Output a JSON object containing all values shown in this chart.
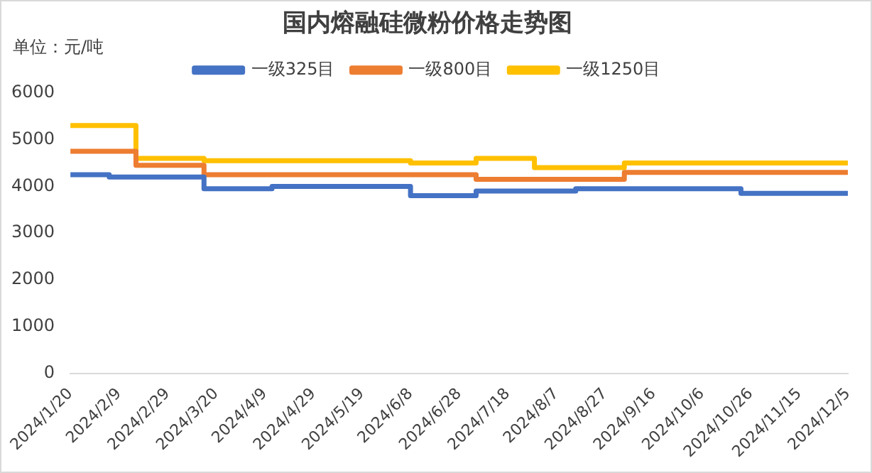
{
  "chart_data": {
    "type": "step",
    "title": "国内熔融硅微粉价格走势图",
    "annotations": [
      "单位：元/吨"
    ],
    "series": [
      {
        "name": "一级325目",
        "color": "#4472c4",
        "x": [
          "2024-01-20",
          "2024-02-05",
          "2024-03-15",
          "2024-04-12",
          "2024-06-08",
          "2024-07-05",
          "2024-08-15",
          "2024-10-22",
          "2024-12-05"
        ],
        "values": [
          4250,
          4200,
          3950,
          4000,
          3800,
          3900,
          3950,
          3850,
          3850
        ]
      },
      {
        "name": "一级800目",
        "color": "#ed7d31",
        "x": [
          "2024-01-20",
          "2024-02-16",
          "2024-03-15",
          "2024-07-05",
          "2024-09-04",
          "2024-12-05"
        ],
        "values": [
          4750,
          4450,
          4250,
          4150,
          4300,
          4300
        ]
      },
      {
        "name": "一级1250目",
        "color": "#ffc000",
        "x": [
          "2024-01-20",
          "2024-02-16",
          "2024-03-15",
          "2024-06-08",
          "2024-07-05",
          "2024-07-29",
          "2024-09-04",
          "2024-12-05"
        ],
        "values": [
          5300,
          4600,
          4550,
          4500,
          4600,
          4400,
          4500,
          4500
        ]
      }
    ],
    "xlim": [
      "2024-01-20",
      "2024-12-05"
    ],
    "xticks": [
      {
        "value": "2024-01-20",
        "label": "2024/1/20"
      },
      {
        "value": "2024-02-09",
        "label": "2024/2/9"
      },
      {
        "value": "2024-02-29",
        "label": "2024/2/29"
      },
      {
        "value": "2024-03-20",
        "label": "2024/3/20"
      },
      {
        "value": "2024-04-09",
        "label": "2024/4/9"
      },
      {
        "value": "2024-04-29",
        "label": "2024/4/29"
      },
      {
        "value": "2024-05-19",
        "label": "2024/5/19"
      },
      {
        "value": "2024-06-08",
        "label": "2024/6/8"
      },
      {
        "value": "2024-06-28",
        "label": "2024/6/28"
      },
      {
        "value": "2024-07-18",
        "label": "2024/7/18"
      },
      {
        "value": "2024-08-07",
        "label": "2024/8/7"
      },
      {
        "value": "2024-08-27",
        "label": "2024/8/27"
      },
      {
        "value": "2024-09-16",
        "label": "2024/9/16"
      },
      {
        "value": "2024-10-06",
        "label": "2024/10/6"
      },
      {
        "value": "2024-10-26",
        "label": "2024/10/26"
      },
      {
        "value": "2024-11-15",
        "label": "2024/11/15"
      },
      {
        "value": "2024-12-05",
        "label": "2024/12/5"
      }
    ],
    "ylim": [
      0,
      6000
    ],
    "yticks": [
      0,
      1000,
      2000,
      3000,
      4000,
      5000,
      6000
    ],
    "grid": false,
    "legend": "top",
    "marker": "none",
    "line_style": "solid"
  }
}
